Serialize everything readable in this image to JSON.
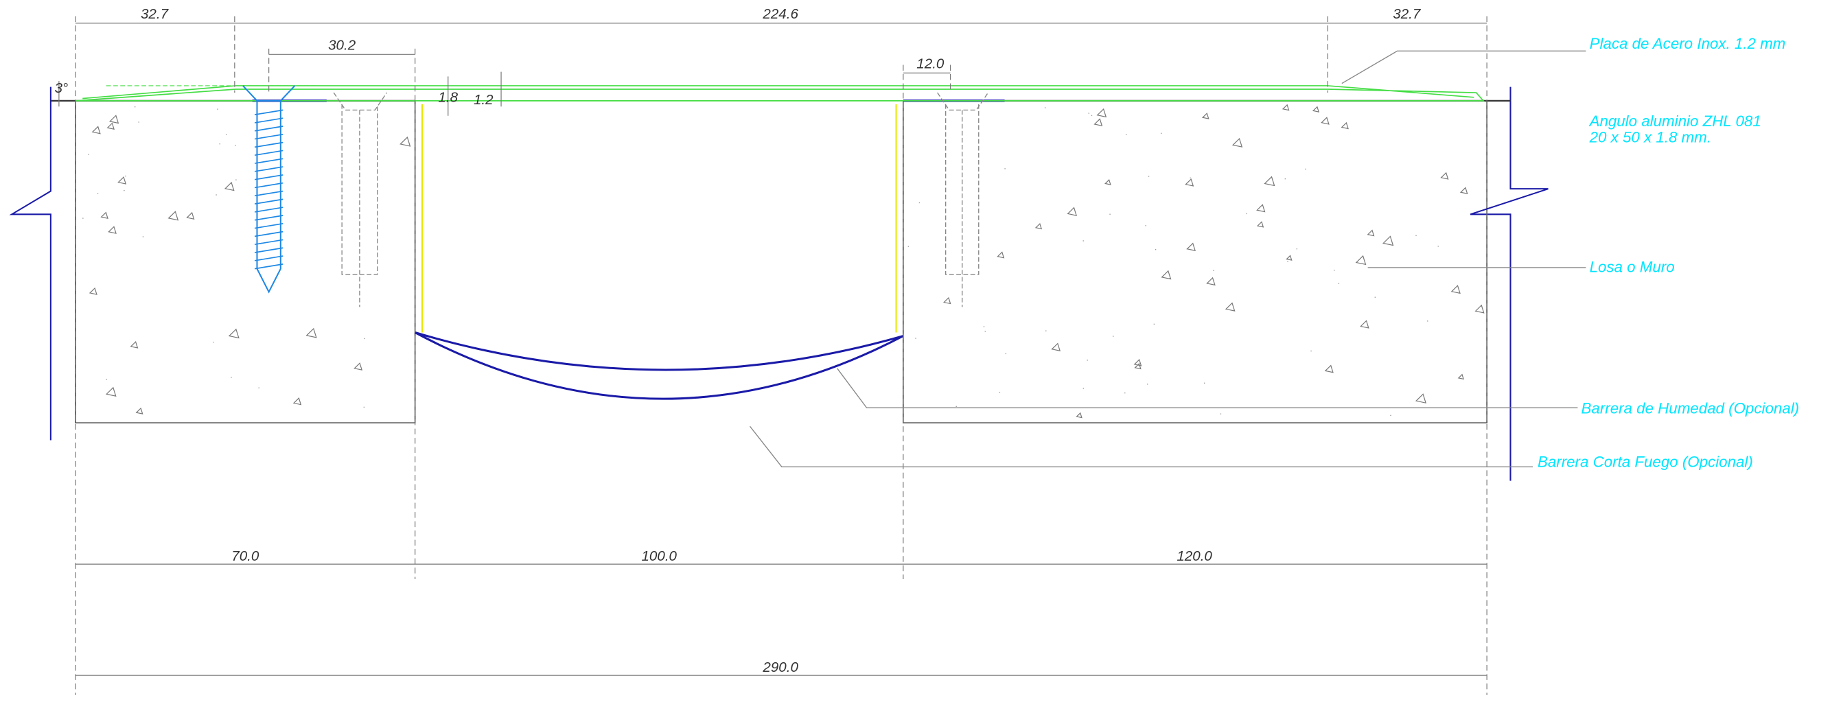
{
  "dimensions": {
    "top": [
      "32.7",
      "224.6",
      "32.7"
    ],
    "screw_spacing": "30.2",
    "plate_lip": "12.0",
    "angle_thickness": "1.8",
    "plate_thickness": "1.2",
    "slope": "3°",
    "bottom": [
      "70.0",
      "100.0",
      "120.0"
    ],
    "total": "290.0"
  },
  "labels": {
    "plate": "Placa de Acero Inox. 1.2 mm",
    "angle": [
      "Angulo  aluminio ZHL 081",
      "20 x 50 x 1.8 mm."
    ],
    "slab": "Losa o Muro",
    "moisture_barrier": "Barrera de Humedad (Opcional)",
    "fire_barrier": "Barrera Corta Fuego (Opcional)"
  }
}
